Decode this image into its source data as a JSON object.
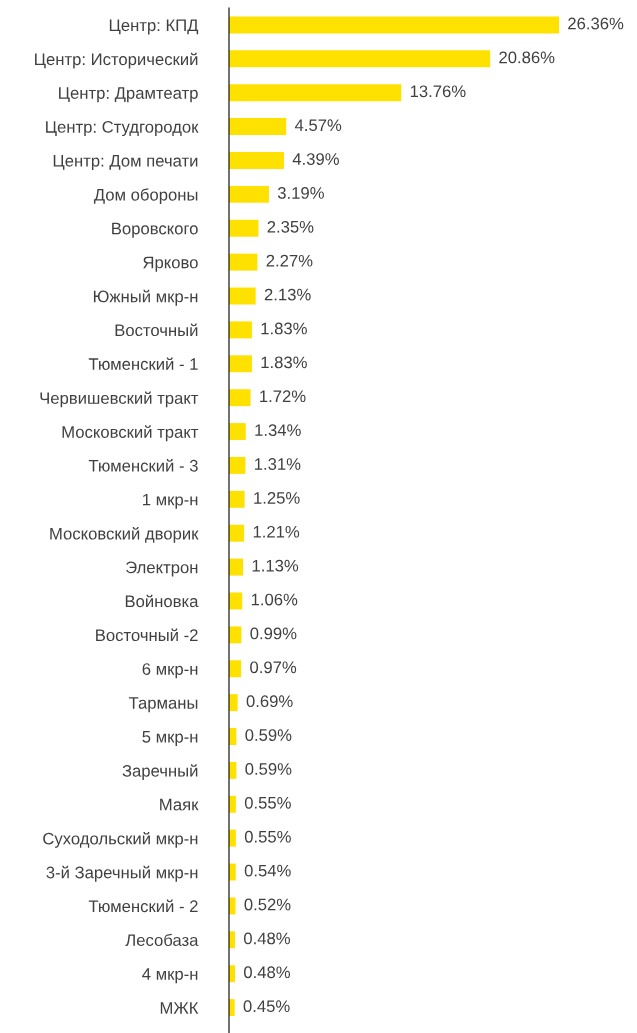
{
  "chart_data": {
    "type": "bar",
    "orientation": "horizontal",
    "color": "#ffe100",
    "categories": [
      "Центр: КПД",
      "Центр: Исторический",
      "Центр: Драмтеатр",
      "Центр: Студгородок",
      "Центр: Дом печати",
      "Дом обороны",
      "Воровского",
      "Ярково",
      "Южный мкр-н",
      "Восточный",
      "Тюменский - 1",
      "Червишевский тракт",
      "Московский тракт",
      "Тюменский - 3",
      "1 мкр-н",
      "Московский дворик",
      "Электрон",
      "Войновка",
      "Восточный -2",
      "6 мкр-н",
      "Тарманы",
      "5 мкр-н",
      "Заречный",
      "Маяк",
      "Суходольский мкр-н",
      "3-й Заречный мкр-н",
      "Тюменский - 2",
      "Лесобаза",
      "4 мкр-н",
      "МЖК"
    ],
    "values": [
      26.36,
      20.86,
      13.76,
      4.57,
      4.39,
      3.19,
      2.35,
      2.27,
      2.13,
      1.83,
      1.83,
      1.72,
      1.34,
      1.31,
      1.25,
      1.21,
      1.13,
      1.06,
      0.99,
      0.97,
      0.69,
      0.59,
      0.59,
      0.55,
      0.55,
      0.54,
      0.52,
      0.48,
      0.48,
      0.45
    ],
    "value_labels": [
      "26.36%",
      "20.86%",
      "13.76%",
      "4.57%",
      "4.39%",
      "3.19%",
      "2.35%",
      "2.27%",
      "2.13%",
      "1.83%",
      "1.83%",
      "1.72%",
      "1.34%",
      "1.31%",
      "1.25%",
      "1.21%",
      "1.13%",
      "1.06%",
      "0.99%",
      "0.97%",
      "0.69%",
      "0.59%",
      "0.59%",
      "0.55%",
      "0.55%",
      "0.54%",
      "0.52%",
      "0.48%",
      "0.48%",
      "0.45%"
    ],
    "grid": false,
    "legend": false
  }
}
